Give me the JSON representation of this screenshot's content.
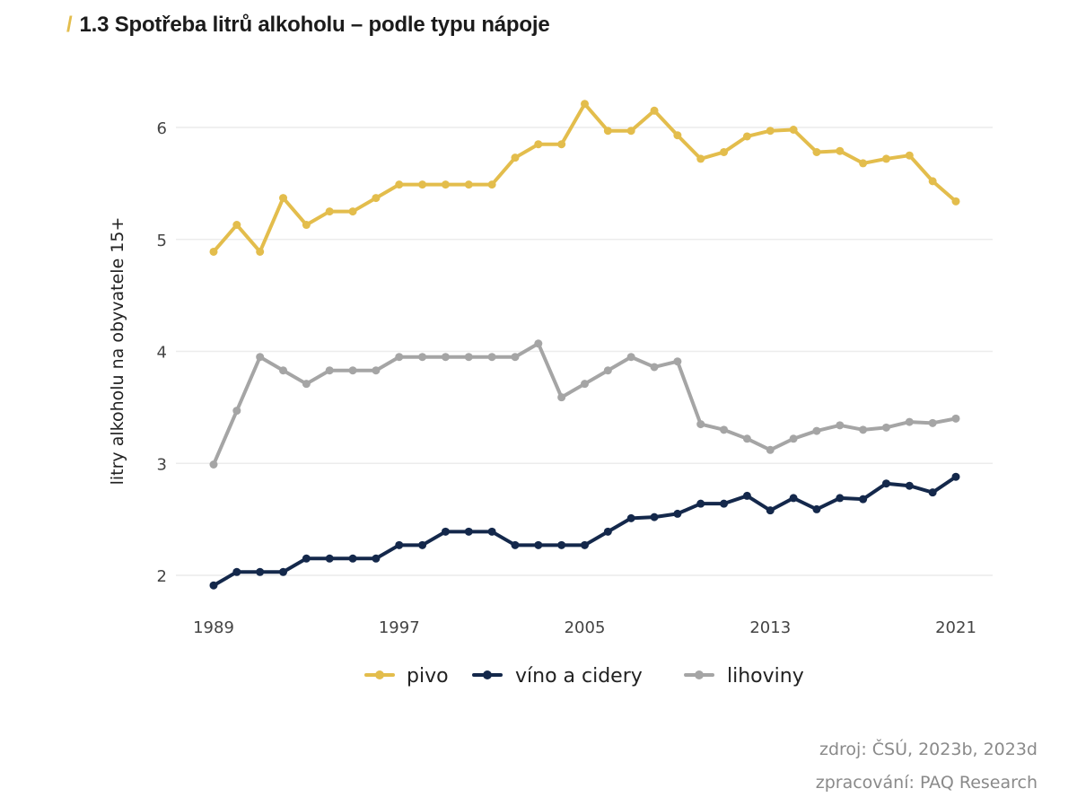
{
  "header": {
    "slash": "/",
    "title": "1.3 Spotřeba litrů alkoholu – podle typu nápoje"
  },
  "footer": {
    "source": "zdroj: ČSÚ, 2023b, 2023d",
    "processing": "zpracování: PAQ Research"
  },
  "chart_data": {
    "type": "line",
    "title": "1.3 Spotřeba litrů alkoholu – podle typu nápoje",
    "xlabel": "",
    "ylabel": "litry alkoholu na obyvatele 15+",
    "x": [
      1989,
      1990,
      1991,
      1992,
      1993,
      1994,
      1995,
      1996,
      1997,
      1998,
      1999,
      2000,
      2001,
      2002,
      2003,
      2004,
      2005,
      2006,
      2007,
      2008,
      2009,
      2010,
      2011,
      2012,
      2013,
      2014,
      2015,
      2016,
      2017,
      2018,
      2019,
      2020,
      2021
    ],
    "xticks": [
      1989,
      1997,
      2005,
      2013,
      2021
    ],
    "yticks": [
      2,
      3,
      4,
      5,
      6
    ],
    "xlim": [
      1989,
      2021
    ],
    "ylim": [
      1.8,
      6.3
    ],
    "grid": true,
    "legend_position": "bottom",
    "series": [
      {
        "name": "pivo",
        "color": "#e3bd4c",
        "values": [
          4.89,
          5.13,
          4.89,
          5.37,
          5.13,
          5.25,
          5.25,
          5.37,
          5.49,
          5.49,
          5.49,
          5.49,
          5.49,
          5.73,
          5.85,
          5.85,
          6.21,
          5.97,
          5.97,
          6.15,
          5.93,
          5.72,
          5.78,
          5.92,
          5.97,
          5.98,
          5.78,
          5.79,
          5.68,
          5.72,
          5.75,
          5.52,
          5.34
        ]
      },
      {
        "name": "víno a cidery",
        "color": "#14284b",
        "values": [
          1.91,
          2.03,
          2.03,
          2.03,
          2.15,
          2.15,
          2.15,
          2.15,
          2.27,
          2.27,
          2.39,
          2.39,
          2.39,
          2.27,
          2.27,
          2.27,
          2.27,
          2.39,
          2.51,
          2.52,
          2.55,
          2.64,
          2.64,
          2.71,
          2.58,
          2.69,
          2.59,
          2.69,
          2.68,
          2.82,
          2.8,
          2.74,
          2.88
        ]
      },
      {
        "name": "lihoviny",
        "color": "#a5a5a5",
        "values": [
          2.99,
          3.47,
          3.95,
          3.83,
          3.71,
          3.83,
          3.83,
          3.83,
          3.95,
          3.95,
          3.95,
          3.95,
          3.95,
          3.95,
          4.07,
          3.59,
          3.71,
          3.83,
          3.95,
          3.86,
          3.91,
          3.35,
          3.3,
          3.22,
          3.12,
          3.22,
          3.29,
          3.34,
          3.3,
          3.32,
          3.37,
          3.36,
          3.4
        ]
      }
    ]
  }
}
